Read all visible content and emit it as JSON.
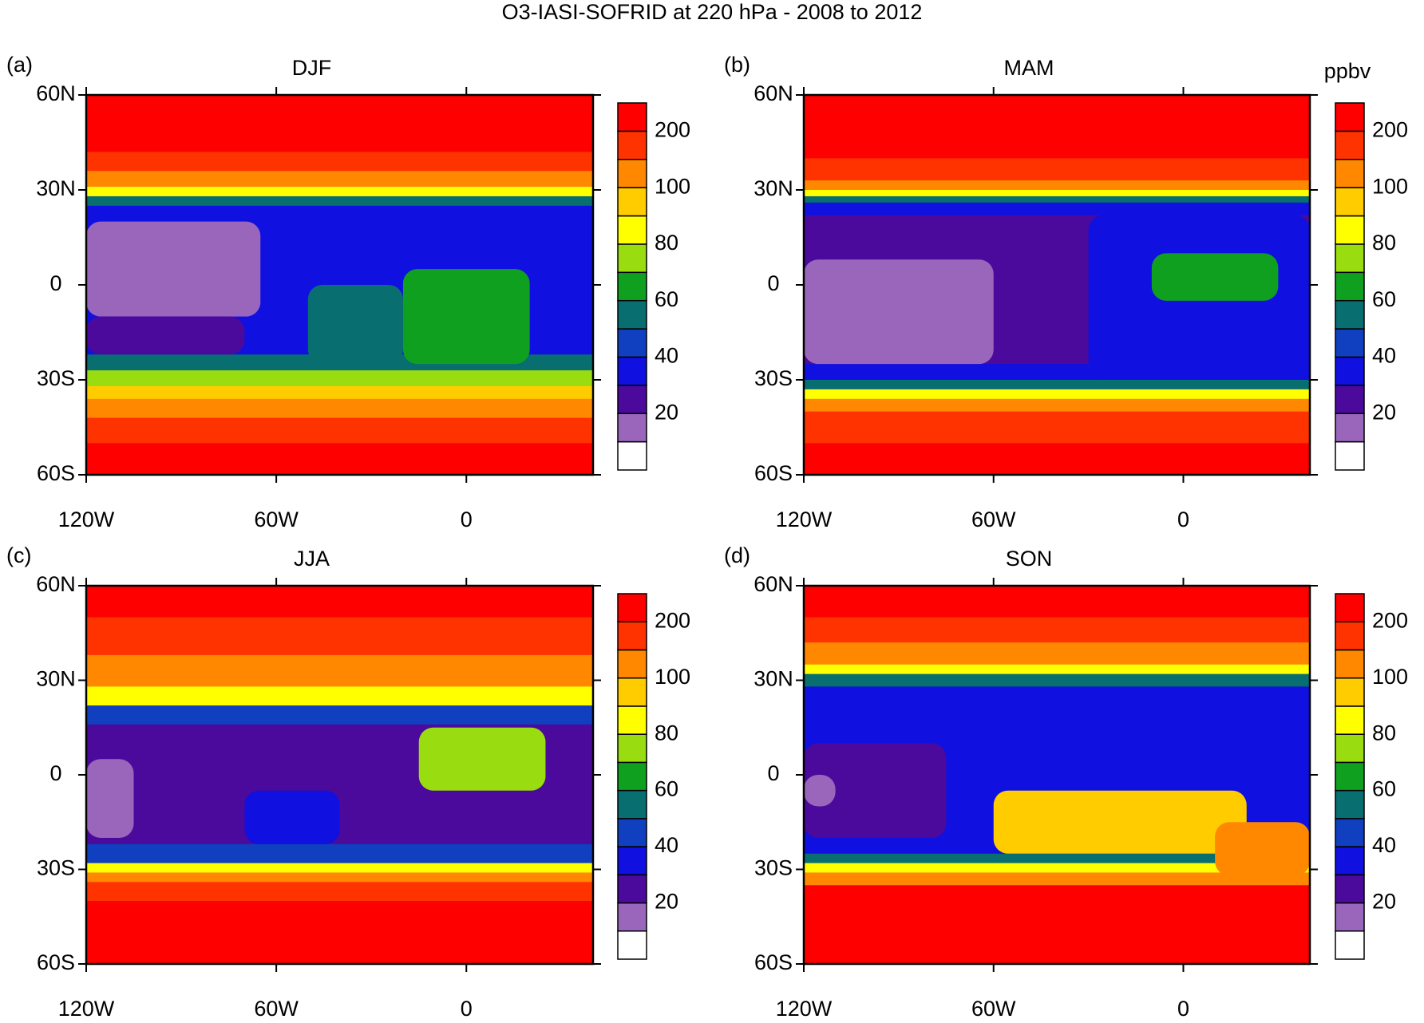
{
  "chart_data": {
    "type": "map",
    "title": "O3-IASI-SOFRID at 220 hPa - 2008 to 2012",
    "unit": "ppbv",
    "xlim": [
      -120,
      40
    ],
    "ylim": [
      -60,
      60
    ],
    "xticks": [
      {
        "value": -120,
        "label": "120W"
      },
      {
        "value": -60,
        "label": "60W"
      },
      0
    ],
    "yticks": [
      {
        "value": 60,
        "label": "60N"
      },
      {
        "value": 30,
        "label": "30N"
      },
      0,
      {
        "value": -30,
        "label": "30S"
      },
      {
        "value": -60,
        "label": "60S"
      }
    ],
    "colorbar": {
      "levels": [
        10,
        20,
        30,
        40,
        50,
        60,
        70,
        80,
        90,
        100,
        150,
        200
      ],
      "ticks": [
        20,
        40,
        60,
        80,
        100,
        200
      ],
      "colors": [
        "#ffffff",
        "#9966bb",
        "#4b0a9b",
        "#1010e0",
        "#1040c0",
        "#086e70",
        "#10a020",
        "#99dd11",
        "#ffff00",
        "#ffcc00",
        "#ff8800",
        "#ff3300",
        "#ff0000"
      ]
    },
    "panels": [
      {
        "letter": "(a)",
        "season": "DJF",
        "band_edges": [
          60,
          42,
          36,
          31,
          28,
          25,
          -22,
          -27,
          -32,
          -36,
          -42,
          -50,
          -60
        ],
        "band_values": [
          250,
          175,
          125,
          85,
          55,
          35,
          55,
          75,
          95,
          125,
          175,
          250
        ],
        "patches": [
          {
            "lon": [
              -120,
              -65
            ],
            "lat": [
              20,
              -10
            ],
            "value": 15
          },
          {
            "lon": [
              -120,
              -70
            ],
            "lat": [
              -10,
              -22
            ],
            "value": 25
          },
          {
            "lon": [
              -50,
              -20
            ],
            "lat": [
              0,
              -25
            ],
            "value": 55
          },
          {
            "lon": [
              -20,
              20
            ],
            "lat": [
              5,
              -25
            ],
            "value": 65
          }
        ]
      },
      {
        "letter": "(b)",
        "season": "MAM",
        "band_edges": [
          60,
          40,
          33,
          30,
          28,
          26,
          22,
          -25,
          -30,
          -33,
          -36,
          -40,
          -50,
          -60
        ],
        "band_values": [
          250,
          175,
          125,
          85,
          55,
          35,
          25,
          35,
          55,
          85,
          125,
          175,
          250
        ],
        "patches": [
          {
            "lon": [
              -120,
              -60
            ],
            "lat": [
              8,
              -25
            ],
            "value": 15
          },
          {
            "lon": [
              -30,
              40
            ],
            "lat": [
              22,
              -30
            ],
            "value": 35
          },
          {
            "lon": [
              -10,
              30
            ],
            "lat": [
              10,
              -5
            ],
            "value": 65
          }
        ]
      },
      {
        "letter": "(c)",
        "season": "JJA",
        "band_edges": [
          60,
          50,
          38,
          28,
          22,
          16,
          -22,
          -28,
          -31,
          -34,
          -40,
          -60
        ],
        "band_values": [
          250,
          175,
          125,
          85,
          45,
          25,
          45,
          85,
          125,
          175,
          250
        ],
        "patches": [
          {
            "lon": [
              -120,
              -105
            ],
            "lat": [
              5,
              -20
            ],
            "value": 15
          },
          {
            "lon": [
              -70,
              -40
            ],
            "lat": [
              -5,
              -22
            ],
            "value": 35
          },
          {
            "lon": [
              -15,
              25
            ],
            "lat": [
              15,
              -5
            ],
            "value": 75
          }
        ]
      },
      {
        "letter": "(d)",
        "season": "SON",
        "band_edges": [
          60,
          50,
          42,
          35,
          32,
          28,
          -25,
          -28,
          -31,
          -35,
          -60
        ],
        "band_values": [
          250,
          175,
          125,
          85,
          55,
          35,
          55,
          85,
          125,
          250
        ],
        "patches": [
          {
            "lon": [
              -120,
              -75
            ],
            "lat": [
              10,
              -20
            ],
            "value": 25
          },
          {
            "lon": [
              -120,
              -110
            ],
            "lat": [
              0,
              -10
            ],
            "value": 15
          },
          {
            "lon": [
              -60,
              20
            ],
            "lat": [
              -5,
              -25
            ],
            "value": 90
          },
          {
            "lon": [
              10,
              40
            ],
            "lat": [
              -15,
              -32
            ],
            "value": 125
          }
        ]
      }
    ]
  }
}
